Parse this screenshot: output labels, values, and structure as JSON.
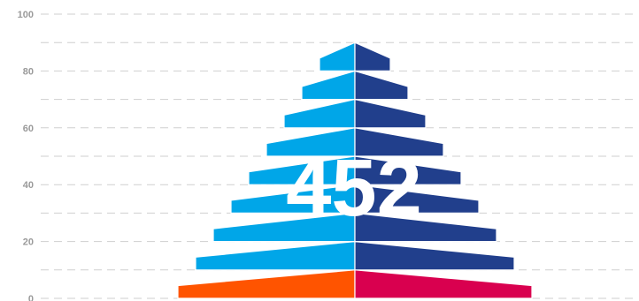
{
  "chart_data": {
    "type": "pyramid",
    "y_axis": {
      "ylim": [
        0,
        100
      ],
      "ticks": [
        0,
        20,
        40,
        60,
        80,
        100
      ],
      "tick_labels": [
        "0",
        "20",
        "40",
        "60",
        "80",
        "100"
      ],
      "minor_step": 10,
      "grid": "dashed"
    },
    "center_label": "452",
    "tiers": [
      {
        "bottom": 0,
        "top": 10,
        "left_color": "#ff5400",
        "right_color": "#d9004f"
      },
      {
        "bottom": 10,
        "top": 20,
        "left_color": "#00a6e8",
        "right_color": "#213f8c"
      },
      {
        "bottom": 20,
        "top": 30,
        "left_color": "#00a6e8",
        "right_color": "#213f8c"
      },
      {
        "bottom": 30,
        "top": 40,
        "left_color": "#00a6e8",
        "right_color": "#213f8c"
      },
      {
        "bottom": 40,
        "top": 50,
        "left_color": "#00a6e8",
        "right_color": "#213f8c"
      },
      {
        "bottom": 50,
        "top": 60,
        "left_color": "#00a6e8",
        "right_color": "#213f8c"
      },
      {
        "bottom": 60,
        "top": 70,
        "left_color": "#00a6e8",
        "right_color": "#213f8c"
      },
      {
        "bottom": 70,
        "top": 80,
        "left_color": "#00a6e8",
        "right_color": "#213f8c"
      },
      {
        "bottom": 80,
        "top": 90,
        "left_color": "#00a6e8",
        "right_color": "#213f8c"
      }
    ],
    "colors": {
      "grid": "#cfcfcf",
      "tick_label": "#9a9a9a",
      "left_tier": "#00a6e8",
      "right_tier": "#213f8c",
      "base_left": "#ff5400",
      "base_right": "#d9004f"
    }
  }
}
